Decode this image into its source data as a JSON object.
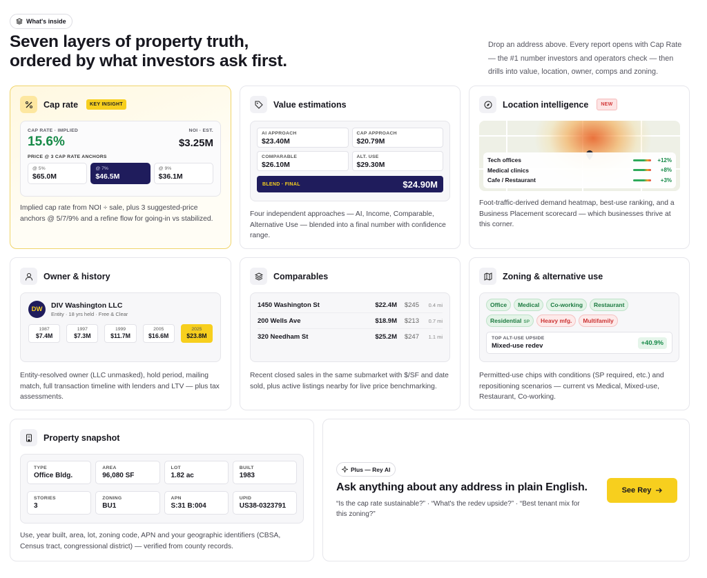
{
  "header": {
    "badge": "What's inside",
    "title_lines": [
      "Seven layers of property truth,",
      "ordered by what investors ask first."
    ],
    "description": "Drop an address above. Every report opens with Cap Rate — the #1 number investors and operators check — then drills into value, location, owner, comps and zoning."
  },
  "cards": {
    "cap_rate": {
      "title": "Cap rate",
      "tag": "KEY INSIGHT",
      "implied_label": "CAP RATE · IMPLIED",
      "implied_value": "15.6%",
      "noi_label": "NOI · EST.",
      "noi_value": "$3.25M",
      "anchors_label": "PRICE @ 3 CAP RATE ANCHORS",
      "anchors": [
        {
          "label": "@ 5%",
          "value": "$65.0M"
        },
        {
          "label": "@ 7%",
          "value": "$46.5M"
        },
        {
          "label": "@ 9%",
          "value": "$36.1M"
        }
      ],
      "description": "Implied cap rate from NOI ÷ sale, plus 3 suggested-price anchors @ 5/7/9% and a refine flow for going-in vs stabilized."
    },
    "value": {
      "title": "Value estimations",
      "approaches": [
        {
          "label": "AI APPROACH",
          "value": "$23.40M"
        },
        {
          "label": "CAP APPROACH",
          "value": "$20.79M"
        },
        {
          "label": "COMPARABLE",
          "value": "$26.10M"
        },
        {
          "label": "ALT. USE",
          "value": "$29.30M"
        }
      ],
      "blend_label": "BLEND · FINAL",
      "blend_value": "$24.90M",
      "description": "Four independent approaches — AI, Income, Comparable, Alternative Use — blended into a final number with confidence range."
    },
    "location": {
      "title": "Location intelligence",
      "tag": "NEW",
      "rows": [
        {
          "label": "Tech offices",
          "change": "+12%"
        },
        {
          "label": "Medical clinics",
          "change": "+8%"
        },
        {
          "label": "Cafe / Restaurant",
          "change": "+3%"
        }
      ],
      "description": "Foot-traffic-derived demand heatmap, best-use ranking, and a Business Placement scorecard — which businesses thrive at this corner."
    },
    "owner": {
      "title": "Owner & history",
      "initials": "DW",
      "name": "DIV Washington LLC",
      "subtitle": "Entity · 18 yrs held · Free & Clear",
      "timeline": [
        {
          "year": "1987",
          "value": "$7.4M"
        },
        {
          "year": "1997",
          "value": "$7.3M"
        },
        {
          "year": "1999",
          "value": "$11.7M"
        },
        {
          "year": "2005",
          "value": "$16.6M"
        },
        {
          "year": "2025",
          "value": "$23.8M"
        }
      ],
      "description": "Entity-resolved owner (LLC unmasked), hold period, mailing match, full transaction timeline with lenders and LTV — plus tax assessments."
    },
    "comparables": {
      "title": "Comparables",
      "rows": [
        {
          "address": "1450 Washington St",
          "price": "$22.4M",
          "price_per_sf": "$245",
          "distance": "0.4 mi"
        },
        {
          "address": "200 Wells Ave",
          "price": "$18.9M",
          "price_per_sf": "$213",
          "distance": "0.7 mi"
        },
        {
          "address": "320 Needham St",
          "price": "$25.2M",
          "price_per_sf": "$247",
          "distance": "1.1 mi"
        }
      ],
      "description": "Recent closed sales in the same submarket with $/SF and date sold, plus active listings nearby for live price benchmarking."
    },
    "zoning": {
      "title": "Zoning & alternative use",
      "permitted": [
        {
          "label": "Office"
        },
        {
          "label": "Medical"
        },
        {
          "label": "Co-working"
        },
        {
          "label": "Restaurant"
        },
        {
          "label": "Residential",
          "condition": "SP"
        }
      ],
      "restricted": [
        "Heavy mfg.",
        "Multifamily"
      ],
      "upside_label": "TOP ALT-USE UPSIDE",
      "upside_use": "Mixed-use redev",
      "upside_value": "+40.9%",
      "description": "Permitted-use chips with conditions (SP required, etc.) and repositioning scenarios — current vs Medical, Mixed-use, Restaurant, Co-working."
    },
    "snapshot": {
      "title": "Property snapshot",
      "fields": [
        {
          "label": "TYPE",
          "value": "Office Bldg."
        },
        {
          "label": "AREA",
          "value": "96,080 SF"
        },
        {
          "label": "LOT",
          "value": "1.82 ac"
        },
        {
          "label": "BUILT",
          "value": "1983"
        },
        {
          "label": "STORIES",
          "value": "3"
        },
        {
          "label": "ZONING",
          "value": "BU1"
        },
        {
          "label": "APN",
          "value": "S:31 B:004"
        },
        {
          "label": "UPID",
          "value": "US38-0323791"
        }
      ],
      "description": "Use, year built, area, lot, zoning code, APN and your geographic identifiers (CBSA, Census tract, congressional district) — verified from county records."
    },
    "rey": {
      "badge": "Plus — Rey AI",
      "heading": "Ask anything about any address in plain English.",
      "examples": "“Is the cap rate sustainable?” · “What's the redev upside?” · “Best tenant mix for this zoning?”",
      "button": "See Rey"
    }
  }
}
